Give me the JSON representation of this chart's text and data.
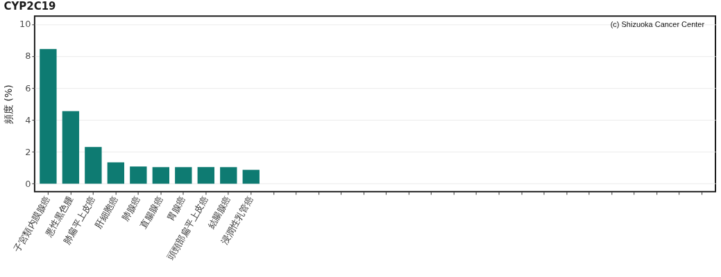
{
  "chart_data": {
    "type": "bar",
    "title": "CYP2C19",
    "ylabel": "頻度 (%)",
    "categories": [
      "子宮類内膜腺癌",
      "悪性黒色腫",
      "肺扁平上皮癌",
      "肝細胞癌",
      "肺腺癌",
      "直腸腺癌",
      "胃腺癌",
      "頭頸部扁平上皮癌",
      "結腸腺癌",
      "浸潤性乳管癌",
      null,
      null,
      null,
      null,
      null,
      null,
      null,
      null,
      null,
      null,
      null,
      null,
      null,
      null,
      null,
      null,
      null,
      null,
      null,
      null
    ],
    "values": [
      8.44,
      4.55,
      2.3,
      1.34,
      1.08,
      1.04,
      1.04,
      1.04,
      1.04,
      0.87,
      null,
      null,
      null,
      null,
      null,
      null,
      null,
      null,
      null,
      null,
      null,
      null,
      null,
      null,
      null,
      null,
      null,
      null,
      null,
      null
    ],
    "color": "#0e7b72",
    "ylim": [
      -0.5,
      10.5
    ],
    "yticks": [
      0,
      2,
      4,
      6,
      8,
      10
    ],
    "grid": "y",
    "annotations": [
      "(c) Shizuoka Cancer Center"
    ]
  }
}
